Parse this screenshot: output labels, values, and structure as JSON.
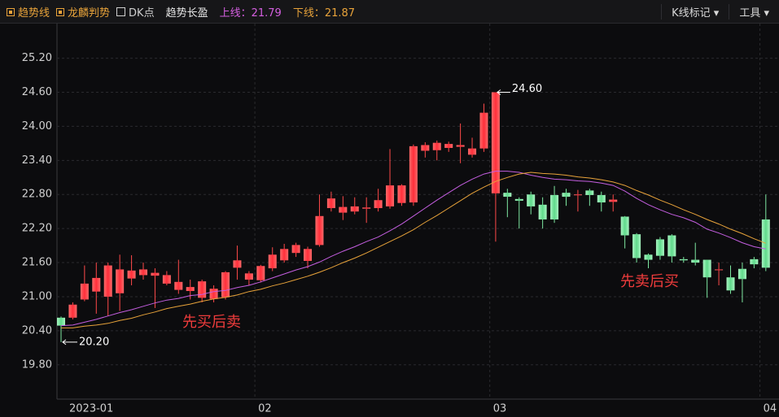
{
  "toolbar": {
    "indicators": [
      "趋势线",
      "龙麟判势"
    ],
    "dk": "DK点",
    "title": "趋势长盈",
    "upper": "上线：21.79",
    "lower": "下线：21.87",
    "buttons": [
      "K线标记",
      "工具"
    ]
  },
  "chart_data": {
    "type": "candlestick",
    "categories": [
      "2023-01",
      null,
      null,
      null,
      null,
      null,
      null,
      null,
      null,
      null,
      null,
      null,
      null,
      null,
      null,
      null,
      null,
      "02",
      null,
      null,
      null,
      null,
      null,
      null,
      null,
      null,
      null,
      null,
      null,
      null,
      null,
      null,
      null,
      null,
      null,
      null,
      null,
      "03",
      null,
      null,
      null,
      null,
      null,
      null,
      null,
      null,
      null,
      null,
      null,
      null,
      null,
      null,
      null,
      null,
      null,
      null,
      null,
      null,
      null,
      null,
      "04"
    ],
    "open": [
      20.63,
      20.63,
      20.95,
      21.09,
      21.0,
      21.06,
      21.32,
      21.38,
      21.37,
      21.23,
      21.12,
      21.1,
      20.98,
      20.96,
      20.99,
      21.51,
      21.3,
      21.29,
      21.5,
      21.64,
      21.77,
      21.63,
      21.91,
      22.56,
      22.48,
      22.5,
      22.55,
      22.56,
      22.59,
      22.65,
      22.66,
      23.57,
      23.58,
      23.62,
      23.64,
      23.5,
      23.61,
      22.82,
      22.83,
      22.72,
      22.8,
      22.62,
      22.79,
      22.83,
      22.8,
      22.87,
      22.79,
      22.67,
      22.41,
      22.1,
      21.74,
      22.01,
      22.08,
      21.66,
      21.65,
      21.65,
      21.48,
      21.34,
      21.49,
      21.66,
      22.36
    ],
    "high": [
      20.65,
      20.9,
      21.55,
      21.6,
      21.6,
      21.74,
      21.73,
      21.6,
      21.5,
      21.45,
      21.65,
      21.3,
      21.3,
      21.2,
      21.45,
      21.9,
      21.45,
      21.56,
      21.87,
      21.93,
      21.95,
      21.88,
      22.8,
      22.85,
      22.77,
      22.75,
      22.75,
      22.9,
      23.6,
      22.98,
      23.68,
      23.72,
      23.75,
      23.73,
      24.05,
      23.8,
      24.4,
      24.6,
      22.9,
      22.75,
      22.85,
      22.75,
      22.95,
      22.9,
      22.88,
      22.9,
      22.85,
      22.8,
      22.42,
      22.12,
      21.76,
      22.05,
      22.1,
      21.7,
      21.95,
      21.65,
      21.6,
      21.55,
      21.6,
      21.7,
      22.8
    ],
    "low": [
      20.2,
      20.6,
      20.92,
      20.7,
      20.66,
      20.75,
      21.2,
      21.3,
      20.8,
      21.2,
      21.05,
      20.95,
      20.9,
      20.9,
      20.95,
      21.3,
      21.2,
      21.25,
      21.45,
      21.6,
      21.7,
      21.5,
      21.88,
      22.5,
      22.35,
      22.45,
      22.3,
      22.5,
      22.55,
      22.6,
      22.6,
      23.45,
      23.4,
      23.55,
      23.35,
      23.45,
      23.55,
      21.97,
      22.4,
      22.2,
      22.45,
      22.2,
      22.3,
      22.6,
      22.5,
      22.6,
      22.5,
      22.5,
      21.85,
      21.6,
      21.5,
      21.65,
      21.6,
      21.6,
      21.55,
      20.98,
      21.2,
      21.05,
      20.9,
      21.5,
      21.45
    ],
    "close": [
      20.49,
      20.86,
      21.23,
      21.33,
      21.55,
      21.48,
      21.46,
      21.48,
      21.42,
      21.38,
      21.26,
      21.17,
      21.27,
      21.14,
      21.43,
      21.64,
      21.41,
      21.54,
      21.74,
      21.84,
      21.91,
      21.84,
      22.42,
      22.73,
      22.58,
      22.59,
      22.57,
      22.7,
      22.96,
      22.96,
      23.65,
      23.67,
      23.71,
      23.69,
      23.67,
      23.61,
      24.24,
      24.6,
      22.76,
      22.69,
      22.59,
      22.36,
      22.36,
      22.76,
      22.8,
      22.79,
      22.66,
      22.71,
      22.08,
      21.68,
      21.65,
      21.72,
      21.71,
      21.64,
      21.6,
      21.34,
      21.48,
      21.11,
      21.31,
      21.57,
      21.51
    ],
    "up_color": "#ff4a4a",
    "down_color": "#7ee8a2",
    "lines": [
      {
        "color": "#c45ee0",
        "values": [
          20.49,
          20.5,
          20.55,
          20.6,
          20.66,
          20.72,
          20.77,
          20.83,
          20.89,
          20.94,
          20.97,
          21.02,
          21.04,
          21.09,
          21.11,
          21.16,
          21.2,
          21.26,
          21.33,
          21.4,
          21.47,
          21.53,
          21.61,
          21.71,
          21.8,
          21.88,
          21.97,
          22.05,
          22.16,
          22.28,
          22.42,
          22.56,
          22.7,
          22.83,
          22.96,
          23.07,
          23.16,
          23.21,
          23.21,
          23.19,
          23.14,
          23.1,
          23.07,
          23.06,
          23.04,
          23.03,
          23.0,
          22.96,
          22.86,
          22.73,
          22.62,
          22.53,
          22.45,
          22.39,
          22.31,
          22.19,
          22.12,
          22.04,
          21.95,
          21.88,
          21.84
        ]
      },
      {
        "color": "#e8a33a",
        "values": [
          20.45,
          20.45,
          20.48,
          20.5,
          20.53,
          20.58,
          20.62,
          20.68,
          20.73,
          20.79,
          20.83,
          20.87,
          20.92,
          20.96,
          20.99,
          21.03,
          21.09,
          21.13,
          21.19,
          21.24,
          21.3,
          21.36,
          21.43,
          21.51,
          21.6,
          21.68,
          21.77,
          21.87,
          21.97,
          22.07,
          22.18,
          22.31,
          22.43,
          22.56,
          22.69,
          22.82,
          22.93,
          23.03,
          23.1,
          23.16,
          23.19,
          23.17,
          23.16,
          23.14,
          23.11,
          23.09,
          23.06,
          23.02,
          22.96,
          22.87,
          22.79,
          22.7,
          22.62,
          22.53,
          22.45,
          22.36,
          22.28,
          22.19,
          22.11,
          22.02,
          21.94
        ]
      }
    ],
    "ylim": [
      19.21,
      25.81
    ],
    "yticks": [
      {
        "value": 25.2,
        "label": "25.20"
      },
      {
        "value": 24.6,
        "label": "24.60"
      },
      {
        "value": 24.0,
        "label": "24.00"
      },
      {
        "value": 23.4,
        "label": "23.40"
      },
      {
        "value": 22.8,
        "label": "22.80"
      },
      {
        "value": 22.2,
        "label": "22.20"
      },
      {
        "value": 21.6,
        "label": "21.60"
      },
      {
        "value": 21.0,
        "label": "21.00"
      },
      {
        "value": 20.4,
        "label": "20.40"
      },
      {
        "value": 19.8,
        "label": "19.80"
      }
    ],
    "grid": true,
    "max_label": "24.60",
    "min_label": "20.20",
    "notes": [
      "先买后卖",
      "先卖后买"
    ]
  }
}
